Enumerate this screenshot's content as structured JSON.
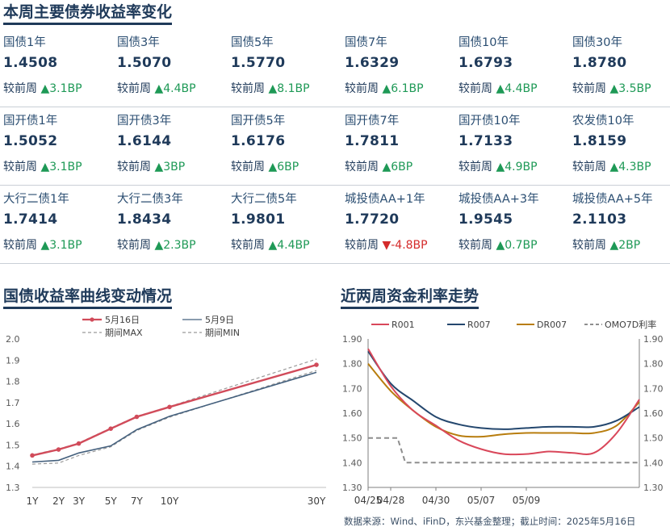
{
  "header": {
    "title": "本周主要债券收益率变化"
  },
  "change_prefix": "较前周",
  "colors": {
    "up": "#1e9956",
    "down": "#d42a2a",
    "title": "#1f3a5a"
  },
  "bonds": [
    [
      {
        "name": "国债1年",
        "value": "1.4508",
        "dir": "up",
        "change": "3.1BP"
      },
      {
        "name": "国债3年",
        "value": "1.5070",
        "dir": "up",
        "change": "4.4BP"
      },
      {
        "name": "国债5年",
        "value": "1.5770",
        "dir": "up",
        "change": "8.1BP"
      },
      {
        "name": "国债7年",
        "value": "1.6329",
        "dir": "up",
        "change": "6.1BP"
      },
      {
        "name": "国债10年",
        "value": "1.6793",
        "dir": "up",
        "change": "4.4BP"
      },
      {
        "name": "国债30年",
        "value": "1.8780",
        "dir": "up",
        "change": "3.5BP"
      }
    ],
    [
      {
        "name": "国开债1年",
        "value": "1.5052",
        "dir": "up",
        "change": "3.1BP"
      },
      {
        "name": "国开债3年",
        "value": "1.6144",
        "dir": "up",
        "change": "3BP"
      },
      {
        "name": "国开债5年",
        "value": "1.6176",
        "dir": "up",
        "change": "6BP"
      },
      {
        "name": "国开债7年",
        "value": "1.7811",
        "dir": "up",
        "change": "6BP"
      },
      {
        "name": "国开债10年",
        "value": "1.7133",
        "dir": "up",
        "change": "4.9BP"
      },
      {
        "name": "农发债10年",
        "value": "1.8159",
        "dir": "up",
        "change": "4.3BP"
      }
    ],
    [
      {
        "name": "大行二债1年",
        "value": "1.7414",
        "dir": "up",
        "change": "3.1BP"
      },
      {
        "name": "大行二债3年",
        "value": "1.8434",
        "dir": "up",
        "change": "2.3BP"
      },
      {
        "name": "大行二债5年",
        "value": "1.9801",
        "dir": "up",
        "change": "4.4BP"
      },
      {
        "name": "城投债AA+1年",
        "value": "1.7720",
        "dir": "down",
        "change": "-4.8BP"
      },
      {
        "name": "城投债AA+3年",
        "value": "1.9545",
        "dir": "up",
        "change": "0.7BP"
      },
      {
        "name": "城投债AA+5年",
        "value": "2.1103",
        "dir": "up",
        "change": "2BP"
      }
    ]
  ],
  "chart_data": [
    {
      "type": "line",
      "title": "国债收益率曲线变动情况",
      "x_labels": [
        "1Y",
        "2Y",
        "3Y",
        "5Y",
        "7Y",
        "10Y",
        "30Y"
      ],
      "x_years": [
        1,
        2,
        3,
        5,
        7,
        10,
        30
      ],
      "x_scale": "sqrt",
      "ylim": [
        1.3,
        2.0
      ],
      "yticks": [
        "1.3",
        "1.4",
        "1.5",
        "1.6",
        "1.7",
        "1.8",
        "1.9",
        "2.0"
      ],
      "grid": false,
      "legend_position": "top",
      "series": [
        {
          "name": "5月16日",
          "color": "#d14b5a",
          "style": "solid-marker",
          "values": [
            1.4508,
            1.4787,
            1.507,
            1.577,
            1.6329,
            1.6793,
            1.878
          ]
        },
        {
          "name": "5月9日",
          "color": "#44607d",
          "style": "solid",
          "values": [
            1.4198,
            1.428,
            1.4626,
            1.4961,
            1.5719,
            1.6353,
            1.8425
          ]
        },
        {
          "name": "期间MAX",
          "color": "#9a9a9a",
          "style": "dashed",
          "values": [
            1.4532,
            1.4812,
            1.5098,
            1.5797,
            1.6355,
            1.6813,
            1.905
          ]
        },
        {
          "name": "期间MIN",
          "color": "#9a9a9a",
          "style": "dashed",
          "values": [
            1.4101,
            1.4149,
            1.4508,
            1.4912,
            1.5681,
            1.6309,
            1.8512
          ]
        }
      ]
    },
    {
      "type": "line",
      "title": "近两周资金利率走势",
      "x_labels": [
        "04/25",
        "04/28",
        "04/30",
        "05/07",
        "05/09"
      ],
      "x_dates": [
        "04/25",
        "04/28",
        "04/29",
        "04/30",
        "05/06",
        "05/07",
        "05/08",
        "05/09",
        "05/12",
        "05/13",
        "05/14",
        "05/15",
        "05/16"
      ],
      "ylim": [
        1.3,
        1.9
      ],
      "yticks": [
        "1.30",
        "1.40",
        "1.50",
        "1.60",
        "1.70",
        "1.80",
        "1.90"
      ],
      "grid": false,
      "legend_position": "top",
      "series": [
        {
          "name": "R001",
          "color": "#d9475a",
          "style": "solid",
          "values": [
            1.86,
            1.71,
            1.61,
            1.55,
            1.49,
            1.455,
            1.435,
            1.435,
            1.445,
            1.44,
            1.44,
            1.52,
            1.655
          ]
        },
        {
          "name": "R007",
          "color": "#24476e",
          "style": "solid",
          "values": [
            1.85,
            1.72,
            1.65,
            1.585,
            1.555,
            1.54,
            1.535,
            1.54,
            1.545,
            1.545,
            1.545,
            1.57,
            1.625
          ]
        },
        {
          "name": "DR007",
          "color": "#b87d0e",
          "style": "solid",
          "values": [
            1.8,
            1.69,
            1.61,
            1.545,
            1.51,
            1.505,
            1.515,
            1.52,
            1.52,
            1.52,
            1.52,
            1.55,
            1.645
          ]
        },
        {
          "name": "OMO7D利率",
          "color": "#8e8e8e",
          "style": "dashed",
          "values": [
            1.5,
            1.5,
            1.4,
            1.4,
            1.4,
            1.4,
            1.4,
            1.4,
            1.4,
            1.4,
            1.4,
            1.4,
            1.4
          ]
        }
      ]
    }
  ],
  "footer": {
    "source": "数据来源：Wind、iFinD，东兴基金整理；截止时间：2025年5月16日"
  }
}
